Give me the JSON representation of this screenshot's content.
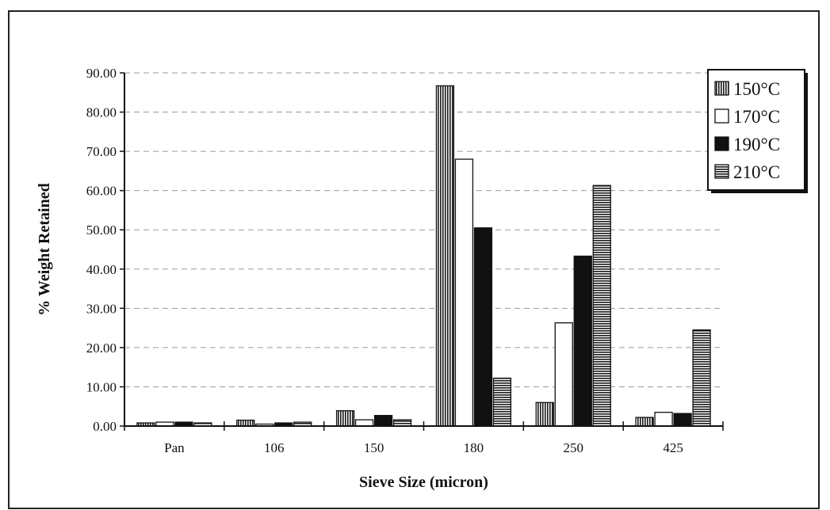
{
  "chart_data": {
    "type": "bar",
    "title": "",
    "xlabel": "Sieve Size (micron)",
    "ylabel": "% Weight Retained",
    "categories": [
      "Pan",
      "106",
      "150",
      "180",
      "250",
      "425"
    ],
    "ylim": [
      0,
      90
    ],
    "yticks": [
      "0.00",
      "10.00",
      "20.00",
      "30.00",
      "40.00",
      "50.00",
      "60.00",
      "70.00",
      "80.00",
      "90.00"
    ],
    "grid": true,
    "legend_position": "top-right",
    "series": [
      {
        "name": "150°C",
        "values": [
          0.8,
          1.5,
          3.9,
          86.7,
          6.0,
          2.2
        ],
        "pattern": "vertical-hatch"
      },
      {
        "name": "170°C",
        "values": [
          1.0,
          0.5,
          1.6,
          68.0,
          26.3,
          3.5
        ],
        "pattern": "white"
      },
      {
        "name": "190°C",
        "values": [
          1.0,
          0.8,
          2.7,
          50.5,
          43.3,
          3.2
        ],
        "pattern": "black"
      },
      {
        "name": "210°C",
        "values": [
          0.8,
          1.0,
          1.6,
          12.2,
          61.3,
          24.5
        ],
        "pattern": "horizontal-hatch"
      }
    ]
  }
}
